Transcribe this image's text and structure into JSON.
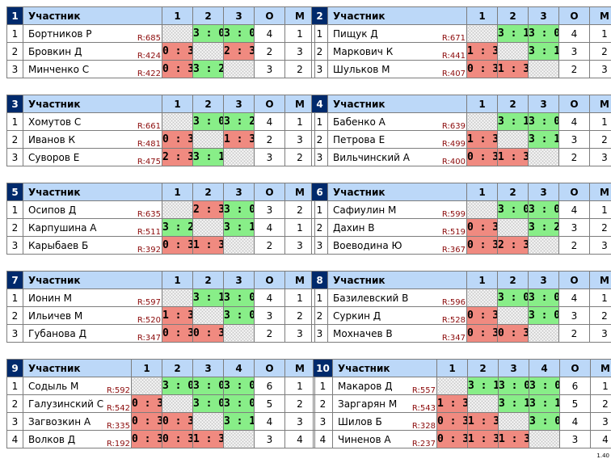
{
  "header": {
    "participant_label": "Участник",
    "points_label": "О",
    "place_label": "М"
  },
  "groups": [
    {
      "number": "1",
      "cols": [
        "1",
        "2",
        "3"
      ],
      "players": [
        {
          "idx": "1",
          "name": "Бортников Р",
          "rating": "R:685",
          "scores": [
            "",
            "3 : 0",
            "3 : 0"
          ],
          "points": "4",
          "place": "1"
        },
        {
          "idx": "2",
          "name": "Бровкин Д",
          "rating": "R:424",
          "scores": [
            "0 : 3",
            "",
            "2 : 3"
          ],
          "points": "2",
          "place": "3"
        },
        {
          "idx": "3",
          "name": "Минченко С",
          "rating": "R:422",
          "scores": [
            "0 : 3",
            "3 : 2",
            ""
          ],
          "points": "3",
          "place": "2"
        }
      ]
    },
    {
      "number": "2",
      "cols": [
        "1",
        "2",
        "3"
      ],
      "players": [
        {
          "idx": "1",
          "name": "Пищук Д",
          "rating": "R:671",
          "scores": [
            "",
            "3 : 1",
            "3 : 0"
          ],
          "points": "4",
          "place": "1"
        },
        {
          "idx": "2",
          "name": "Маркович К",
          "rating": "R:441",
          "scores": [
            "1 : 3",
            "",
            "3 : 1"
          ],
          "points": "3",
          "place": "2"
        },
        {
          "idx": "3",
          "name": "Шульков М",
          "rating": "R:407",
          "scores": [
            "0 : 3",
            "1 : 3",
            ""
          ],
          "points": "2",
          "place": "3"
        }
      ]
    },
    {
      "number": "3",
      "cols": [
        "1",
        "2",
        "3"
      ],
      "players": [
        {
          "idx": "1",
          "name": "Хомутов С",
          "rating": "R:661",
          "scores": [
            "",
            "3 : 0",
            "3 : 2"
          ],
          "points": "4",
          "place": "1"
        },
        {
          "idx": "2",
          "name": "Иванов К",
          "rating": "R:481",
          "scores": [
            "0 : 3",
            "",
            "1 : 3"
          ],
          "points": "2",
          "place": "3"
        },
        {
          "idx": "3",
          "name": "Суворов Е",
          "rating": "R:475",
          "scores": [
            "2 : 3",
            "3 : 1",
            ""
          ],
          "points": "3",
          "place": "2"
        }
      ]
    },
    {
      "number": "4",
      "cols": [
        "1",
        "2",
        "3"
      ],
      "players": [
        {
          "idx": "1",
          "name": "Бабенко А",
          "rating": "R:639",
          "scores": [
            "",
            "3 : 1",
            "3 : 0"
          ],
          "points": "4",
          "place": "1"
        },
        {
          "idx": "2",
          "name": "Петрова Е",
          "rating": "R:499",
          "scores": [
            "1 : 3",
            "",
            "3 : 1"
          ],
          "points": "3",
          "place": "2"
        },
        {
          "idx": "3",
          "name": "Вильчинский А",
          "rating": "R:400",
          "scores": [
            "0 : 3",
            "1 : 3",
            ""
          ],
          "points": "2",
          "place": "3"
        }
      ]
    },
    {
      "number": "5",
      "cols": [
        "1",
        "2",
        "3"
      ],
      "players": [
        {
          "idx": "1",
          "name": "Осипов Д",
          "rating": "R:635",
          "scores": [
            "",
            "2 : 3",
            "3 : 0"
          ],
          "points": "3",
          "place": "2"
        },
        {
          "idx": "2",
          "name": "Карпушина А",
          "rating": "R:511",
          "scores": [
            "3 : 2",
            "",
            "3 : 1"
          ],
          "points": "4",
          "place": "1"
        },
        {
          "idx": "3",
          "name": "Карыбаев Б",
          "rating": "R:392",
          "scores": [
            "0 : 3",
            "1 : 3",
            ""
          ],
          "points": "2",
          "place": "3"
        }
      ]
    },
    {
      "number": "6",
      "cols": [
        "1",
        "2",
        "3"
      ],
      "players": [
        {
          "idx": "1",
          "name": "Сафиулин М",
          "rating": "R:599",
          "scores": [
            "",
            "3 : 0",
            "3 : 0"
          ],
          "points": "4",
          "place": "1"
        },
        {
          "idx": "2",
          "name": "Дахин В",
          "rating": "R:519",
          "scores": [
            "0 : 3",
            "",
            "3 : 2"
          ],
          "points": "3",
          "place": "2"
        },
        {
          "idx": "3",
          "name": "Воеводина Ю",
          "rating": "R:367",
          "scores": [
            "0 : 3",
            "2 : 3",
            ""
          ],
          "points": "2",
          "place": "3"
        }
      ]
    },
    {
      "number": "7",
      "cols": [
        "1",
        "2",
        "3"
      ],
      "players": [
        {
          "idx": "1",
          "name": "Ионин М",
          "rating": "R:597",
          "scores": [
            "",
            "3 : 1",
            "3 : 0"
          ],
          "points": "4",
          "place": "1"
        },
        {
          "idx": "2",
          "name": "Ильичев М",
          "rating": "R:520",
          "scores": [
            "1 : 3",
            "",
            "3 : 0"
          ],
          "points": "3",
          "place": "2"
        },
        {
          "idx": "3",
          "name": "Губанова Д",
          "rating": "R:347",
          "scores": [
            "0 : 3",
            "0 : 3",
            ""
          ],
          "points": "2",
          "place": "3"
        }
      ]
    },
    {
      "number": "8",
      "cols": [
        "1",
        "2",
        "3"
      ],
      "players": [
        {
          "idx": "1",
          "name": "Базилевский В",
          "rating": "R:596",
          "scores": [
            "",
            "3 : 0",
            "3 : 0"
          ],
          "points": "4",
          "place": "1"
        },
        {
          "idx": "2",
          "name": "Суркин Д",
          "rating": "R:528",
          "scores": [
            "0 : 3",
            "",
            "3 : 0"
          ],
          "points": "3",
          "place": "2"
        },
        {
          "idx": "3",
          "name": "Мохначев В",
          "rating": "R:347",
          "scores": [
            "0 : 3",
            "0 : 3",
            ""
          ],
          "points": "2",
          "place": "3"
        }
      ]
    },
    {
      "number": "9",
      "cols": [
        "1",
        "2",
        "3",
        "4"
      ],
      "players": [
        {
          "idx": "1",
          "name": "Содыль М",
          "rating": "R:592",
          "scores": [
            "",
            "3 : 0",
            "3 : 0",
            "3 : 0"
          ],
          "points": "6",
          "place": "1"
        },
        {
          "idx": "2",
          "name": "Галузинский С",
          "rating": "R:542",
          "scores": [
            "0 : 3",
            "",
            "3 : 0",
            "3 : 0"
          ],
          "points": "5",
          "place": "2"
        },
        {
          "idx": "3",
          "name": "Загвозкин А",
          "rating": "R:335",
          "scores": [
            "0 : 3",
            "0 : 3",
            "",
            "3 : 1"
          ],
          "points": "4",
          "place": "3"
        },
        {
          "idx": "4",
          "name": "Волков Д",
          "rating": "R:192",
          "scores": [
            "0 : 3",
            "0 : 3",
            "1 : 3",
            ""
          ],
          "points": "3",
          "place": "4"
        }
      ]
    },
    {
      "number": "10",
      "cols": [
        "1",
        "2",
        "3",
        "4"
      ],
      "players": [
        {
          "idx": "1",
          "name": "Макаров Д",
          "rating": "R:557",
          "scores": [
            "",
            "3 : 1",
            "3 : 0",
            "3 : 0"
          ],
          "points": "6",
          "place": "1"
        },
        {
          "idx": "2",
          "name": "Заргарян М",
          "rating": "R:543",
          "scores": [
            "1 : 3",
            "",
            "3 : 1",
            "3 : 1"
          ],
          "points": "5",
          "place": "2"
        },
        {
          "idx": "3",
          "name": "Шилов Б",
          "rating": "R:328",
          "scores": [
            "0 : 3",
            "1 : 3",
            "",
            "3 : 0"
          ],
          "points": "4",
          "place": "3"
        },
        {
          "idx": "4",
          "name": "Чиненов А",
          "rating": "R:237",
          "scores": [
            "0 : 3",
            "1 : 3",
            "1 : 3",
            ""
          ],
          "points": "3",
          "place": "4"
        }
      ]
    }
  ],
  "footer": {
    "version": "1.40"
  },
  "colors": {
    "win": "#88ee88",
    "loss": "#f08a80",
    "header": "#bcd8f8",
    "group_number": "#002a6c",
    "rating": "#8b0a0a"
  }
}
